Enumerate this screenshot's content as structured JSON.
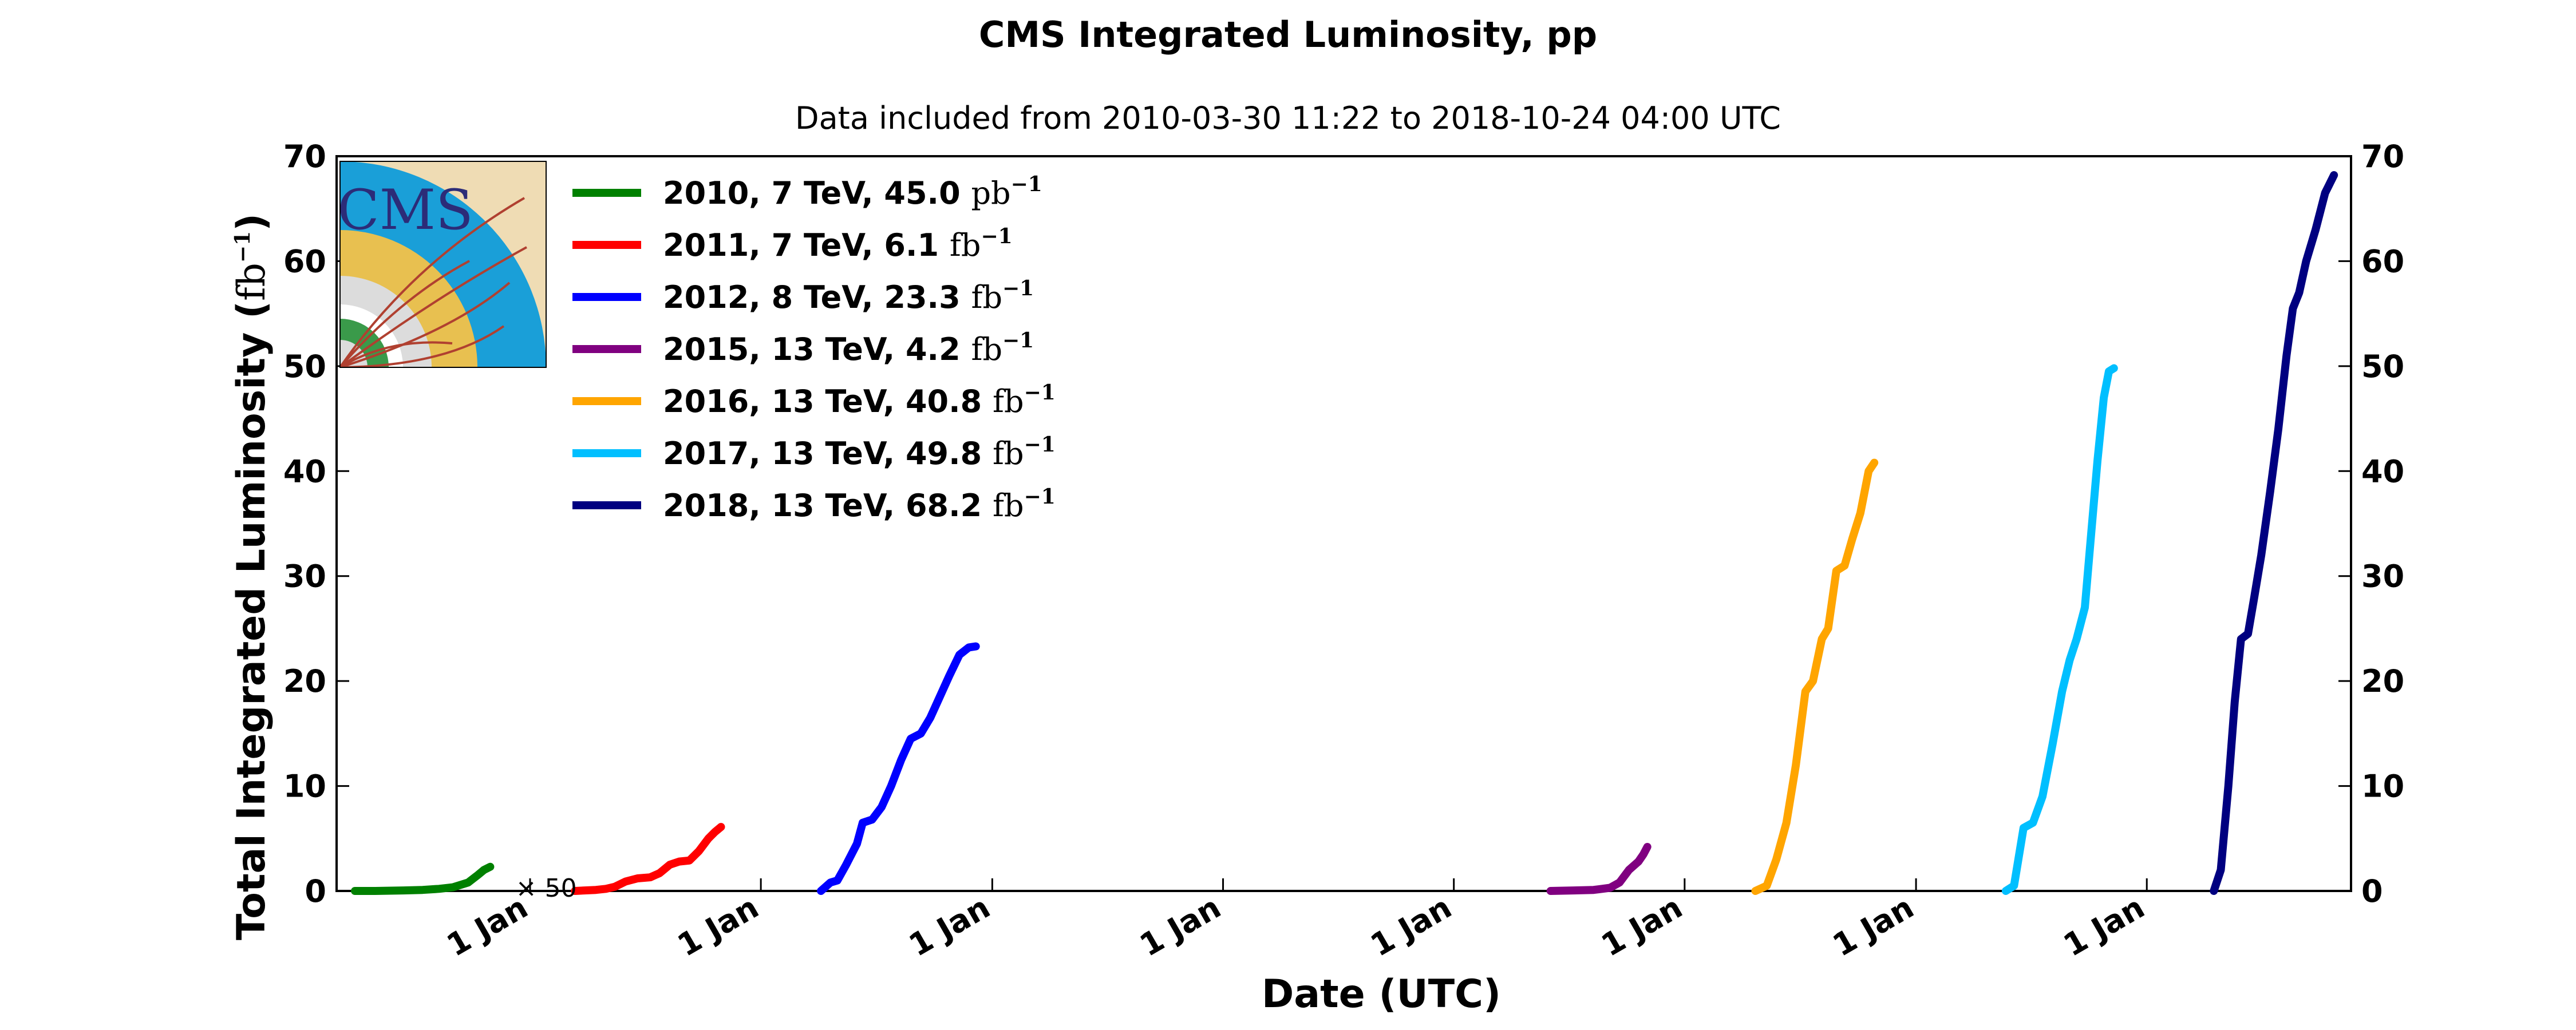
{
  "chart_data": {
    "type": "line",
    "title": "CMS Integrated Luminosity, pp",
    "subtitle": "Data included from 2010-03-30 11:22 to 2018-10-24 04:00 UTC",
    "xlabel": "Date (UTC)",
    "ylabel_main": "Total Integrated Luminosity (",
    "ylabel_unit": "fb",
    "ylabel_sup": "−1",
    "ylabel_close": ")",
    "ylim": [
      0,
      70
    ],
    "yticks": [
      0,
      10,
      20,
      30,
      40,
      50,
      60,
      70
    ],
    "xlim": [
      "2010-03-01",
      "2018-11-20"
    ],
    "xticks": [
      {
        "date": "2011-01-01",
        "label": "1 Jan"
      },
      {
        "date": "2012-01-01",
        "label": "1 Jan"
      },
      {
        "date": "2013-01-01",
        "label": "1 Jan"
      },
      {
        "date": "2014-01-01",
        "label": "1 Jan"
      },
      {
        "date": "2015-01-01",
        "label": "1 Jan"
      },
      {
        "date": "2016-01-01",
        "label": "1 Jan"
      },
      {
        "date": "2017-01-01",
        "label": "1 Jan"
      },
      {
        "date": "2018-01-01",
        "label": "1 Jan"
      }
    ],
    "legend_position": "top-left",
    "logo": "CMS",
    "annotation": {
      "text": "× 50",
      "series": "2010",
      "date": "2010-11-12",
      "y": 2.3
    },
    "series": [
      {
        "name": "2010, 7 TeV, 45.0",
        "unit": "pb",
        "unit_sup": "−1",
        "color": "#008000",
        "points": [
          [
            "2010-03-30",
            0
          ],
          [
            "2010-05-01",
            0
          ],
          [
            "2010-06-15",
            0.05
          ],
          [
            "2010-07-15",
            0.1
          ],
          [
            "2010-08-10",
            0.2
          ],
          [
            "2010-09-01",
            0.35
          ],
          [
            "2010-09-25",
            0.8
          ],
          [
            "2010-10-10",
            1.5
          ],
          [
            "2010-10-20",
            2.0
          ],
          [
            "2010-10-30",
            2.3
          ]
        ]
      },
      {
        "name": "2011, 7 TeV, 6.1",
        "unit": "fb",
        "unit_sup": "−1",
        "color": "#ff0000",
        "points": [
          [
            "2011-03-13",
            0
          ],
          [
            "2011-04-15",
            0.1
          ],
          [
            "2011-05-01",
            0.2
          ],
          [
            "2011-05-15",
            0.4
          ],
          [
            "2011-06-01",
            0.9
          ],
          [
            "2011-06-20",
            1.2
          ],
          [
            "2011-07-10",
            1.3
          ],
          [
            "2011-07-25",
            1.7
          ],
          [
            "2011-08-10",
            2.5
          ],
          [
            "2011-08-25",
            2.8
          ],
          [
            "2011-09-10",
            2.9
          ],
          [
            "2011-09-25",
            3.8
          ],
          [
            "2011-10-10",
            5.0
          ],
          [
            "2011-10-20",
            5.6
          ],
          [
            "2011-10-30",
            6.1
          ]
        ]
      },
      {
        "name": "2012, 8 TeV, 23.3",
        "unit": "fb",
        "unit_sup": "−1",
        "color": "#0000ff",
        "points": [
          [
            "2012-04-05",
            0
          ],
          [
            "2012-04-20",
            0.8
          ],
          [
            "2012-05-01",
            1.0
          ],
          [
            "2012-05-15",
            2.5
          ],
          [
            "2012-06-01",
            4.5
          ],
          [
            "2012-06-10",
            6.5
          ],
          [
            "2012-06-25",
            6.8
          ],
          [
            "2012-07-10",
            8.0
          ],
          [
            "2012-07-25",
            10.0
          ],
          [
            "2012-08-10",
            12.5
          ],
          [
            "2012-08-25",
            14.5
          ],
          [
            "2012-09-10",
            15.0
          ],
          [
            "2012-09-25",
            16.5
          ],
          [
            "2012-10-10",
            18.5
          ],
          [
            "2012-10-25",
            20.5
          ],
          [
            "2012-11-10",
            22.5
          ],
          [
            "2012-11-25",
            23.2
          ],
          [
            "2012-12-06",
            23.3
          ]
        ]
      },
      {
        "name": "2015, 13 TeV, 4.2",
        "unit": "fb",
        "unit_sup": "−1",
        "color": "#800080",
        "points": [
          [
            "2015-06-03",
            0
          ],
          [
            "2015-07-10",
            0.05
          ],
          [
            "2015-08-10",
            0.1
          ],
          [
            "2015-09-05",
            0.3
          ],
          [
            "2015-09-20",
            0.8
          ],
          [
            "2015-10-05",
            2.0
          ],
          [
            "2015-10-20",
            2.8
          ],
          [
            "2015-10-28",
            3.5
          ],
          [
            "2015-11-03",
            4.2
          ]
        ]
      },
      {
        "name": "2016, 13 TeV, 40.8",
        "unit": "fb",
        "unit_sup": "−1",
        "color": "#ffa500",
        "points": [
          [
            "2016-04-22",
            0
          ],
          [
            "2016-05-10",
            0.5
          ],
          [
            "2016-05-25",
            3.0
          ],
          [
            "2016-06-10",
            6.5
          ],
          [
            "2016-06-25",
            12.0
          ],
          [
            "2016-07-10",
            19.0
          ],
          [
            "2016-07-22",
            20.0
          ],
          [
            "2016-08-05",
            24.0
          ],
          [
            "2016-08-15",
            25.0
          ],
          [
            "2016-08-28",
            30.5
          ],
          [
            "2016-09-10",
            31.0
          ],
          [
            "2016-09-22",
            33.5
          ],
          [
            "2016-10-05",
            36.0
          ],
          [
            "2016-10-18",
            40.0
          ],
          [
            "2016-10-27",
            40.8
          ]
        ]
      },
      {
        "name": "2017, 13 TeV, 49.8",
        "unit": "fb",
        "unit_sup": "−1",
        "color": "#00bfff",
        "points": [
          [
            "2017-05-23",
            0
          ],
          [
            "2017-06-05",
            0.5
          ],
          [
            "2017-06-20",
            6.0
          ],
          [
            "2017-07-05",
            6.5
          ],
          [
            "2017-07-20",
            9.0
          ],
          [
            "2017-08-05",
            14.0
          ],
          [
            "2017-08-20",
            19.0
          ],
          [
            "2017-09-01",
            22.0
          ],
          [
            "2017-09-12",
            24.0
          ],
          [
            "2017-09-25",
            27.0
          ],
          [
            "2017-10-05",
            34.0
          ],
          [
            "2017-10-15",
            41.0
          ],
          [
            "2017-10-25",
            47.0
          ],
          [
            "2017-11-02",
            49.5
          ],
          [
            "2017-11-10",
            49.8
          ]
        ]
      },
      {
        "name": "2018, 13 TeV, 68.2",
        "unit": "fb",
        "unit_sup": "−1",
        "color": "#000080",
        "points": [
          [
            "2018-04-17",
            0
          ],
          [
            "2018-04-28",
            2.0
          ],
          [
            "2018-05-10",
            10.0
          ],
          [
            "2018-05-20",
            18.0
          ],
          [
            "2018-05-30",
            24.0
          ],
          [
            "2018-06-10",
            24.5
          ],
          [
            "2018-06-20",
            28.0
          ],
          [
            "2018-07-01",
            32.0
          ],
          [
            "2018-07-15",
            38.0
          ],
          [
            "2018-07-28",
            44.0
          ],
          [
            "2018-08-10",
            51.0
          ],
          [
            "2018-08-20",
            55.5
          ],
          [
            "2018-08-30",
            57.0
          ],
          [
            "2018-09-10",
            60.0
          ],
          [
            "2018-09-25",
            63.0
          ],
          [
            "2018-10-10",
            66.5
          ],
          [
            "2018-10-24",
            68.2
          ]
        ]
      }
    ]
  }
}
